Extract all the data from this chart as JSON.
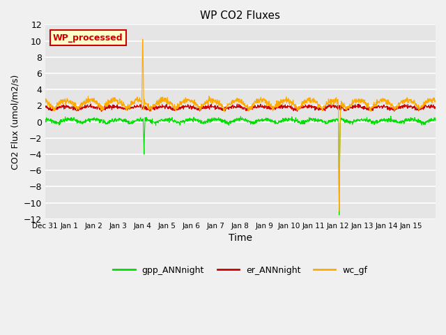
{
  "title": "WP CO2 Fluxes",
  "xlabel": "Time",
  "ylabel": "CO2 Flux (umol/m2/s)",
  "ylim": [
    -12,
    12
  ],
  "yticks": [
    -12,
    -10,
    -8,
    -6,
    -4,
    -2,
    0,
    2,
    4,
    6,
    8,
    10,
    12
  ],
  "x_start_day": -1,
  "x_end_day": 15,
  "xtick_positions": [
    -1,
    0,
    1,
    2,
    3,
    4,
    5,
    6,
    7,
    8,
    9,
    10,
    11,
    12,
    13,
    14,
    15
  ],
  "xtick_labels": [
    "Dec 31",
    "Jan 1",
    "Jan 2",
    "Jan 3",
    "Jan 4",
    "Jan 5",
    "Jan 6",
    "Jan 7",
    "Jan 8",
    "Jan 9",
    "Jan 10",
    "Jan 11",
    "Jan 12",
    "Jan 13",
    "Jan 14",
    "Jan 15",
    ""
  ],
  "legend_labels": [
    "gpp_ANNnight",
    "er_ANNnight",
    "wc_gf"
  ],
  "legend_colors": [
    "#00dd00",
    "#cc0000",
    "#ffaa00"
  ],
  "annotation_text": "WP_processed",
  "annotation_color": "#cc0000",
  "annotation_box_color": "#ffffcc",
  "annotation_box_edge": "#cc0000",
  "background_color": "#e5e5e5",
  "fig_background_color": "#f0f0f0",
  "grid_color": "#ffffff",
  "line_colors": {
    "gpp": "#00dd00",
    "er": "#cc0000",
    "wc": "#ffaa00"
  },
  "line_width": 0.8
}
